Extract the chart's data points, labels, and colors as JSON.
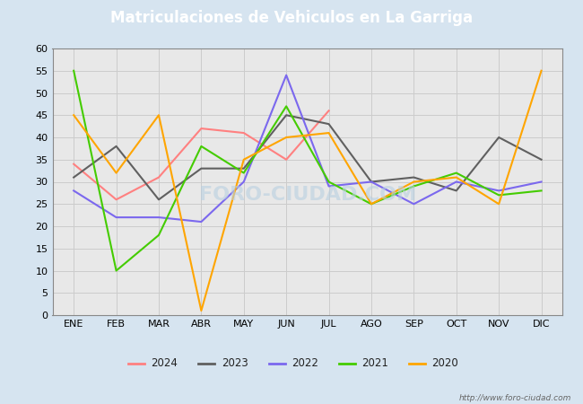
{
  "title": "Matriculaciones de Vehiculos en La Garriga",
  "title_color": "#ffffff",
  "title_bg_color": "#5b9bd5",
  "months": [
    "ENE",
    "FEB",
    "MAR",
    "ABR",
    "MAY",
    "JUN",
    "JUL",
    "AGO",
    "SEP",
    "OCT",
    "NOV",
    "DIC"
  ],
  "series": {
    "2024": {
      "color": "#ff8080",
      "values": [
        34,
        26,
        31,
        42,
        41,
        35,
        46,
        null,
        null,
        null,
        null,
        null
      ]
    },
    "2023": {
      "color": "#606060",
      "values": [
        31,
        38,
        26,
        33,
        33,
        45,
        43,
        30,
        31,
        28,
        40,
        35
      ]
    },
    "2022": {
      "color": "#7b68ee",
      "values": [
        28,
        22,
        22,
        21,
        30,
        54,
        29,
        30,
        25,
        30,
        28,
        30
      ]
    },
    "2021": {
      "color": "#44cc00",
      "values": [
        55,
        10,
        18,
        38,
        32,
        47,
        30,
        25,
        29,
        32,
        27,
        28
      ]
    },
    "2020": {
      "color": "#ffa500",
      "values": [
        45,
        32,
        45,
        1,
        35,
        40,
        41,
        25,
        30,
        31,
        25,
        55
      ]
    }
  },
  "ylim": [
    0,
    60
  ],
  "yticks": [
    0,
    5,
    10,
    15,
    20,
    25,
    30,
    35,
    40,
    45,
    50,
    55,
    60
  ],
  "grid_color": "#cccccc",
  "plot_bg_color": "#e8e8e8",
  "outer_bg_color": "#d6e4f0",
  "watermark_plot": "FORO-CIUDAD.COM",
  "watermark_url": "http://www.foro-ciudad.com",
  "legend_years": [
    "2024",
    "2023",
    "2022",
    "2021",
    "2020"
  ]
}
